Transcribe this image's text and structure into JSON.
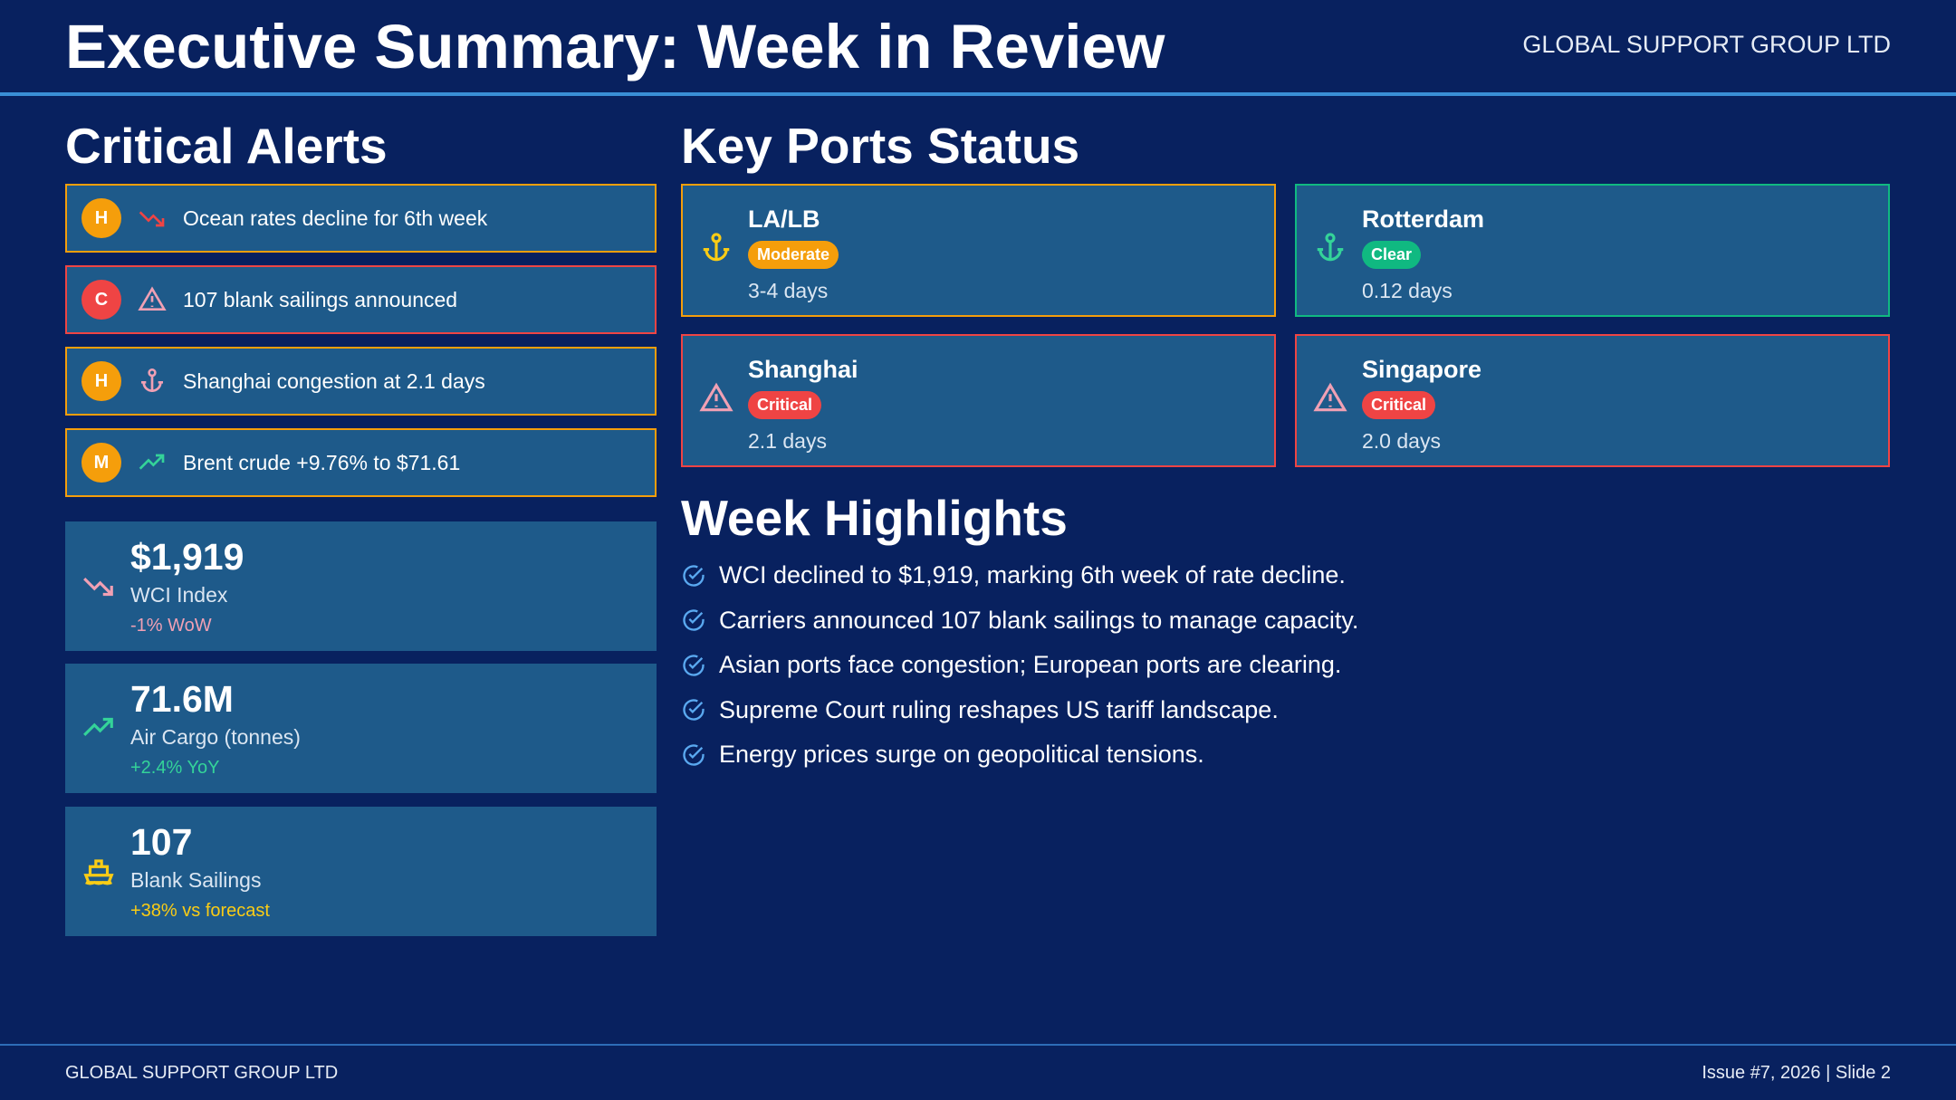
{
  "header": {
    "title": "Executive Summary: Week in Review",
    "company": "GLOBAL SUPPORT GROUP LTD"
  },
  "alerts": {
    "title": "Critical Alerts",
    "items": [
      {
        "badge": "H",
        "text": "Ocean rates decline for 6th week"
      },
      {
        "badge": "C",
        "text": "107 blank sailings announced"
      },
      {
        "badge": "H",
        "text": "Shanghai congestion at 2.1 days"
      },
      {
        "badge": "M",
        "text": "Brent crude +9.76% to $71.61"
      }
    ]
  },
  "metrics": [
    {
      "value": "$1,919",
      "label": "WCI Index",
      "change": "-1% WoW"
    },
    {
      "value": "71.6M",
      "label": "Air Cargo (tonnes)",
      "change": "+2.4% YoY"
    },
    {
      "value": "107",
      "label": "Blank Sailings",
      "change": "+38% vs forecast"
    }
  ],
  "ports": {
    "title": "Key Ports Status",
    "items": [
      {
        "name": "LA/LB",
        "status": "Moderate",
        "time": "3-4 days"
      },
      {
        "name": "Rotterdam",
        "status": "Clear",
        "time": "0.12 days"
      },
      {
        "name": "Shanghai",
        "status": "Critical",
        "time": "2.1 days"
      },
      {
        "name": "Singapore",
        "status": "Critical",
        "time": "2.0 days"
      }
    ]
  },
  "highlights": {
    "title": "Week Highlights",
    "items": [
      "WCI declined to $1,919, marking 6th week of rate decline.",
      "Carriers announced 107 blank sailings to manage capacity.",
      "Asian ports face congestion; European ports are clearing.",
      "Supreme Court ruling reshapes US tariff landscape.",
      "Energy prices surge on geopolitical tensions."
    ]
  },
  "footer": {
    "left": "GLOBAL SUPPORT GROUP LTD",
    "right": "Issue #7, 2026 | Slide 2"
  }
}
